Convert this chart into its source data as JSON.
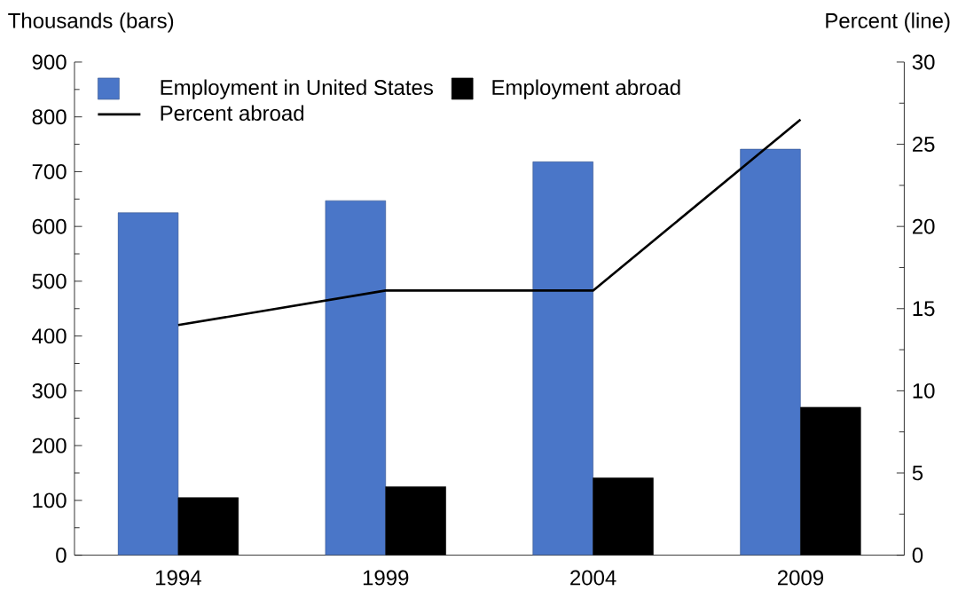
{
  "chart_data": {
    "type": "bar",
    "ylabel": "Thousands (bars)",
    "y2label": "Percent (line)",
    "categories": [
      "1994",
      "1999",
      "2004",
      "2009"
    ],
    "series": [
      {
        "name": "Employment in United States",
        "color": "#4a76c8",
        "values": [
          625,
          647,
          718,
          741
        ]
      },
      {
        "name": "Employment abroad",
        "color": "#000000",
        "values": [
          105,
          125,
          141,
          270
        ]
      },
      {
        "name": "Percent abroad",
        "type": "line",
        "axis": "y2",
        "color": "#000000",
        "values": [
          14.0,
          16.1,
          16.1,
          26.5
        ]
      }
    ],
    "ylim": [
      0,
      900
    ],
    "yticks": [
      0,
      100,
      200,
      300,
      400,
      500,
      600,
      700,
      800,
      900
    ],
    "y2lim": [
      0,
      30
    ],
    "y2ticks": [
      0,
      5,
      10,
      15,
      20,
      25,
      30
    ],
    "legend": "top left"
  }
}
